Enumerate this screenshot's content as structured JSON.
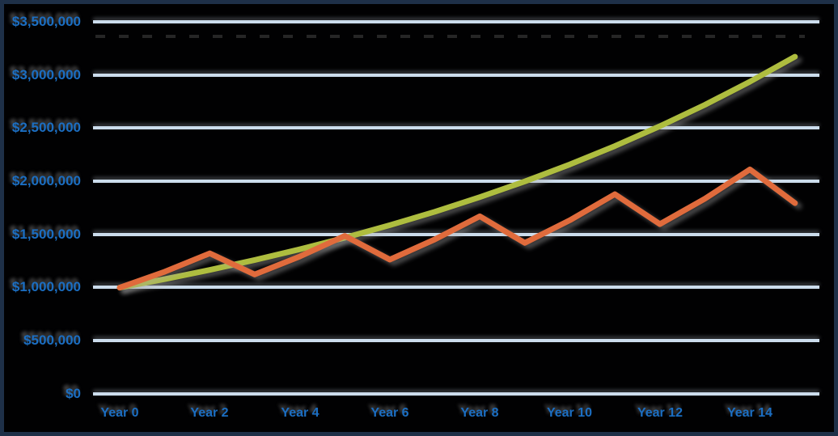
{
  "chart_data": {
    "type": "line",
    "x_unit": "years",
    "x_years": [
      0,
      1,
      2,
      3,
      4,
      5,
      6,
      7,
      8,
      9,
      10,
      11,
      12,
      13,
      14,
      15
    ],
    "x_tick_labels": [
      "Year 0",
      "Year 2",
      "Year 4",
      "Year 6",
      "Year 8",
      "Year 10",
      "Year 12",
      "Year 14"
    ],
    "y_tick_labels": [
      "$3,500,000",
      "$3,000,000",
      "$2,500,000",
      "$2,000,000",
      "$1,500,000",
      "$1,000,000",
      "$500,000",
      "$0"
    ],
    "ylim": [
      0,
      3500000
    ],
    "grid": "horizontal-only",
    "legend": "none",
    "title": "",
    "series": [
      {
        "id": "steady-growth-line",
        "color": "#AEBD3F",
        "shape": "smooth compounding (~8%/yr)",
        "values": [
          1000000,
          1080000,
          1166400,
          1259712,
          1360489,
          1469328,
          1586874,
          1713824,
          1850930,
          1999005,
          2158925,
          2331639,
          2518170,
          2719624,
          2937194,
          3172169
        ]
      },
      {
        "id": "volatile-growth-line",
        "color": "#E06B3C",
        "shape": "zigzag: +15%/yr for 2 yrs then -15% drop",
        "values": [
          1000000,
          1150000,
          1322500,
          1124125,
          1292744,
          1486655,
          1263657,
          1453206,
          1671186,
          1420508,
          1633585,
          1878622,
          1596829,
          1836353,
          2111806,
          1795035
        ]
      }
    ]
  },
  "colors": {
    "background": "#010102",
    "frame_border": "#1E3048",
    "gridline": "#CBDCEC",
    "axis_label_text": "#1B6EC2"
  }
}
